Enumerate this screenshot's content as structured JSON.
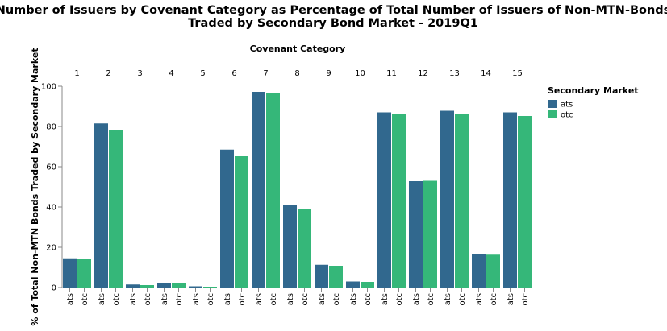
{
  "chart_data": {
    "type": "bar",
    "title": "Number of Issuers by Covenant Category as Percentage of Total Number of Issuers of Non-MTN-Bonds",
    "subtitle": "Traded by Secondary Bond Market - 2019Q1",
    "column_header": "Covenant Category",
    "xlabel": "",
    "ylabel": "% of Total Non-MTN Bonds Traded by Secondary Market",
    "ylim": [
      0,
      100
    ],
    "yticks": [
      "0",
      "20",
      "40",
      "60",
      "80",
      "100"
    ],
    "categories": [
      "1",
      "2",
      "3",
      "4",
      "5",
      "6",
      "7",
      "8",
      "9",
      "10",
      "11",
      "12",
      "13",
      "14",
      "15"
    ],
    "sub_categories": [
      "ats",
      "otc"
    ],
    "series": [
      {
        "name": "ats",
        "color": "#31688e",
        "values": [
          14.5,
          81.5,
          1.5,
          2.2,
          0.6,
          68.5,
          97.2,
          41.0,
          11.3,
          3.0,
          87.0,
          52.8,
          87.8,
          16.8,
          87.0
        ]
      },
      {
        "name": "otc",
        "color": "#35b779",
        "values": [
          14.2,
          78.0,
          1.2,
          2.0,
          0.4,
          65.2,
          96.5,
          38.8,
          10.8,
          2.8,
          86.0,
          53.0,
          86.0,
          16.3,
          85.2
        ]
      }
    ],
    "legend": {
      "title": "Secondary Market",
      "position": "right"
    },
    "grid": false
  }
}
